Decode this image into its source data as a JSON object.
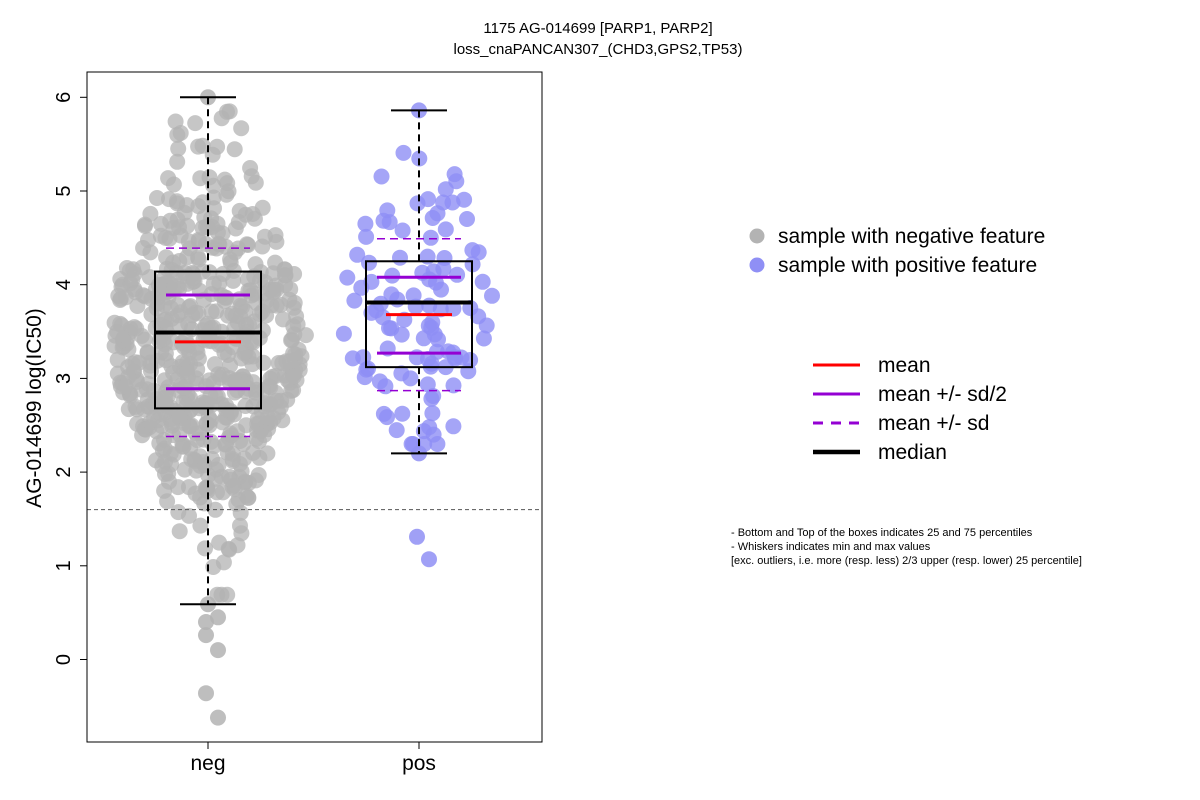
{
  "chart_data": {
    "type": "box",
    "title": "1175 AG-014699 [PARP1, PARP2]",
    "subtitle": "loss_cnaPANCAN307_(CHD3,GPS2,TP53)",
    "xlabel": "",
    "ylabel": "AG-014699 log(IC50)",
    "categories": [
      "neg",
      "pos"
    ],
    "y_ticks": [
      "0",
      "1",
      "2",
      "3",
      "4",
      "5",
      "6"
    ],
    "ylim": [
      -0.8,
      6.35
    ],
    "reference_line": 1.6,
    "groups": [
      {
        "name": "neg",
        "q1": 2.68,
        "median": 3.49,
        "q3": 4.14,
        "whisker_low": 0.59,
        "whisker_high": 6.0,
        "mean": 3.39,
        "mean_minus_half_sd": 2.89,
        "mean_plus_half_sd": 3.89,
        "mean_minus_sd": 2.38,
        "mean_plus_sd": 4.39,
        "n_points": 620,
        "point_seed": 11,
        "outliers": [
          0.26,
          0.1,
          -0.36,
          -0.62,
          0.4,
          0.45
        ]
      },
      {
        "name": "pos",
        "q1": 3.12,
        "median": 3.81,
        "q3": 4.25,
        "whisker_low": 2.2,
        "whisker_high": 5.86,
        "mean": 3.68,
        "mean_minus_half_sd": 3.27,
        "mean_plus_half_sd": 4.08,
        "mean_minus_sd": 2.87,
        "mean_plus_sd": 4.49,
        "n_points": 110,
        "point_seed": 29,
        "outliers": [
          1.31,
          1.07
        ]
      }
    ],
    "point_legend": [
      {
        "label": "sample with negative feature",
        "color": "#b3b3b3"
      },
      {
        "label": "sample with positive feature",
        "color": "#8f8ff5"
      }
    ],
    "line_legend": [
      {
        "label": "mean",
        "color": "#ff0000",
        "style": "solid"
      },
      {
        "label": "mean +/- sd/2",
        "color": "#9400d3",
        "style": "solid"
      },
      {
        "label": "mean +/- sd",
        "color": "#9400d3",
        "style": "dashed"
      },
      {
        "label": "median",
        "color": "#000000",
        "style": "thick"
      }
    ],
    "notes": [
      "- Bottom and Top of the boxes indicates 25 and 75 percentiles",
      "- Whiskers indicates min and max values",
      "[exc. outliers, i.e. more (resp. less) 2/3 upper (resp. lower) 25 percentile]"
    ]
  }
}
